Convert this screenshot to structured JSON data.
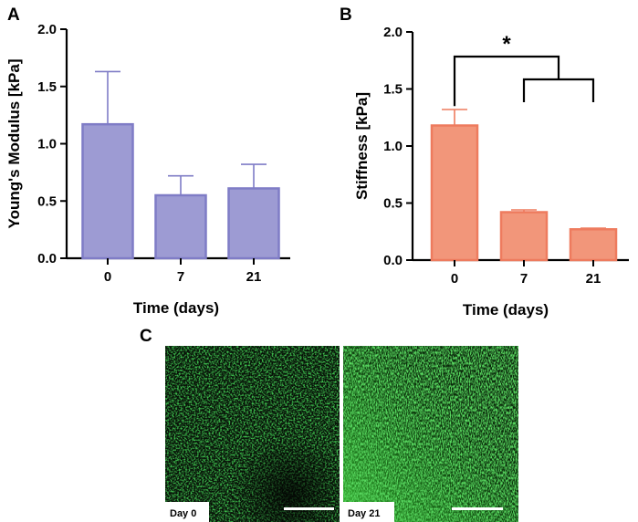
{
  "panels": {
    "a_label": "A",
    "b_label": "B",
    "c_label": "C"
  },
  "chart_data": [
    {
      "type": "bar",
      "panel": "A",
      "categories": [
        "0",
        "7",
        "21"
      ],
      "series": [
        {
          "values": [
            1.17,
            0.55,
            0.61
          ],
          "error_upper": [
            0.46,
            0.17,
            0.21
          ]
        }
      ],
      "xlabel": "Time (days)",
      "ylabel": "Young's Modulus [kPa]",
      "ylim": [
        0,
        2.0
      ],
      "yticks": [
        "0.0",
        "0.5",
        "1.0",
        "1.5",
        "2.0"
      ],
      "bar_fill": "#9d9bd3",
      "bar_edge": "#7f7cc6",
      "grid": false
    },
    {
      "type": "bar",
      "panel": "B",
      "categories": [
        "0",
        "7",
        "21"
      ],
      "series": [
        {
          "values": [
            1.18,
            0.42,
            0.27
          ],
          "error_upper": [
            0.14,
            0.02,
            0.01
          ]
        }
      ],
      "xlabel": "Time (days)",
      "ylabel": "Stiffness [kPa]",
      "ylim": [
        0,
        2.0
      ],
      "yticks": [
        "0.0",
        "0.5",
        "1.0",
        "1.5",
        "2.0"
      ],
      "bar_fill": "#f2967a",
      "bar_edge": "#ee7b5e",
      "grid": false,
      "significance": "*"
    }
  ],
  "micrographs": [
    {
      "label": "Day 0"
    },
    {
      "label": "Day 21"
    }
  ]
}
